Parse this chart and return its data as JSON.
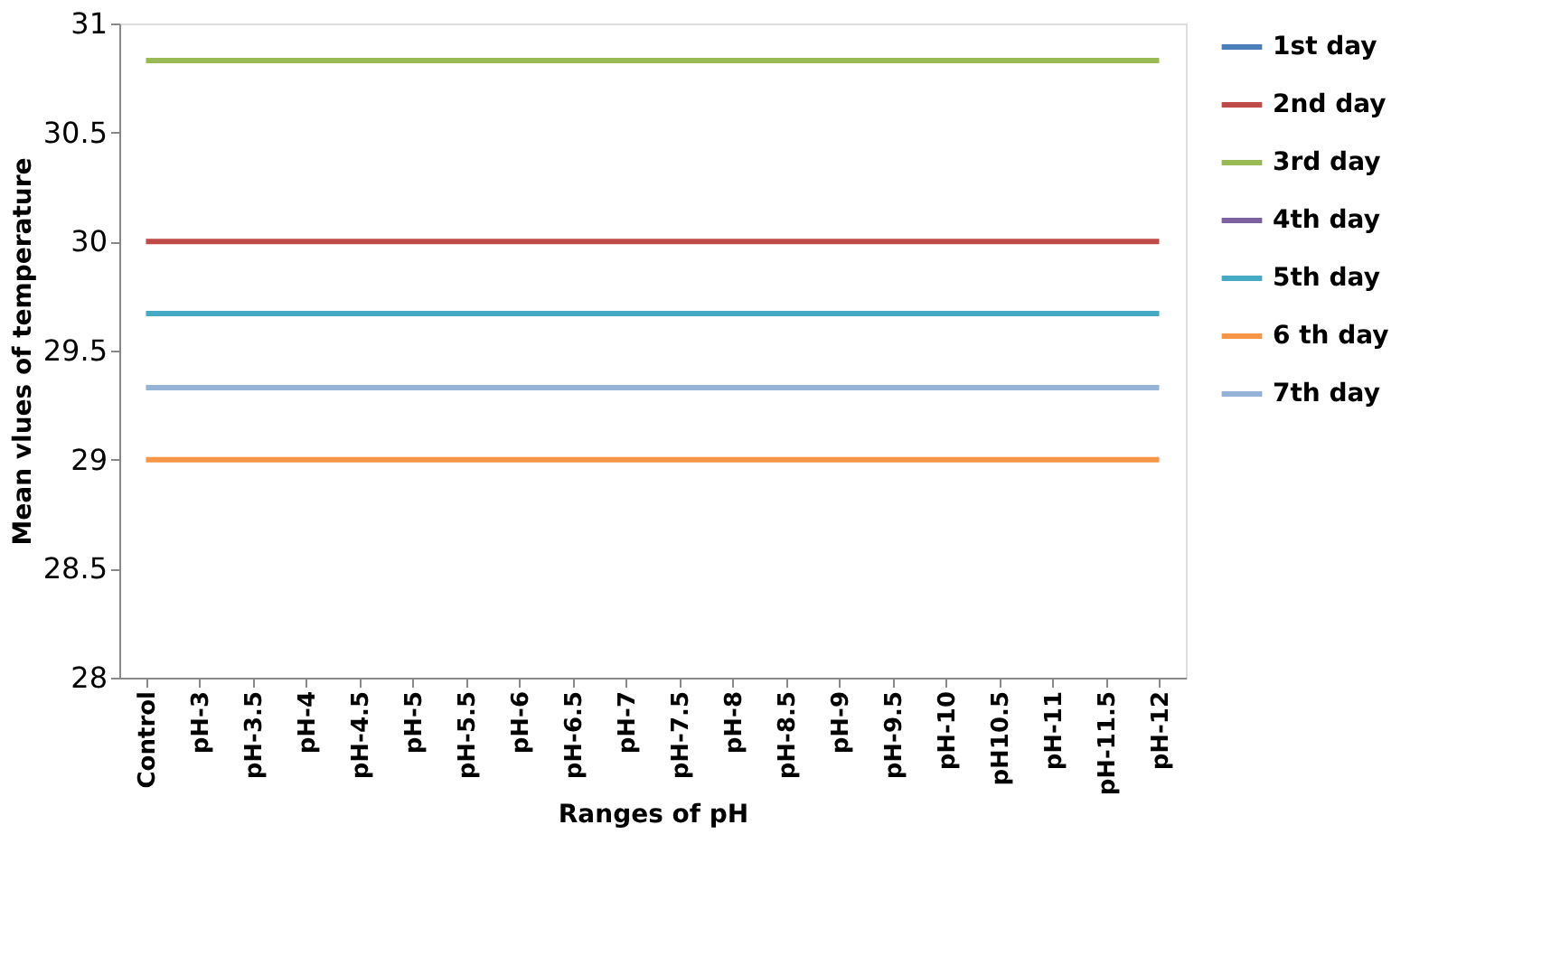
{
  "chart_data": {
    "type": "line",
    "xlabel": "Ranges of pH",
    "ylabel": "Mean vlues of temperature",
    "categories": [
      "Control",
      "pH-3",
      "pH-3.5",
      "pH-4",
      "pH-4.5",
      "pH-5",
      "pH-5.5",
      "pH-6",
      "pH-6.5",
      "pH-7",
      "pH-7.5",
      "pH-8",
      "pH-8.5",
      "pH-9",
      "pH-9.5",
      "pH-10",
      "pH10.5",
      "pH-11",
      "pH-11.5",
      "pH-12"
    ],
    "series": [
      {
        "name": "1st day",
        "color": "#4a7ebb",
        "values": [
          null,
          null,
          null,
          null,
          null,
          null,
          null,
          null,
          null,
          null,
          null,
          null,
          null,
          null,
          null,
          null,
          null,
          null,
          null,
          null
        ]
      },
      {
        "name": "2nd day",
        "color": "#be4b48",
        "values": [
          30,
          30,
          30,
          30,
          30,
          30,
          30,
          30,
          30,
          30,
          30,
          30,
          30,
          30,
          30,
          30,
          30,
          30,
          30,
          30
        ]
      },
      {
        "name": "3rd day",
        "color": "#98b954",
        "values": [
          30.83,
          30.83,
          30.83,
          30.83,
          30.83,
          30.83,
          30.83,
          30.83,
          30.83,
          30.83,
          30.83,
          30.83,
          30.83,
          30.83,
          30.83,
          30.83,
          30.83,
          30.83,
          30.83,
          30.83
        ]
      },
      {
        "name": "4th day",
        "color": "#7d60a0",
        "values": [
          null,
          null,
          null,
          null,
          null,
          null,
          null,
          null,
          null,
          null,
          null,
          null,
          null,
          null,
          null,
          null,
          null,
          null,
          null,
          null
        ]
      },
      {
        "name": "5th day",
        "color": "#46aac5",
        "values": [
          29.67,
          29.67,
          29.67,
          29.67,
          29.67,
          29.67,
          29.67,
          29.67,
          29.67,
          29.67,
          29.67,
          29.67,
          29.67,
          29.67,
          29.67,
          29.67,
          29.67,
          29.67,
          29.67,
          29.67
        ]
      },
      {
        "name": "6 th day",
        "color": "#f79646",
        "values": [
          29,
          29,
          29,
          29,
          29,
          29,
          29,
          29,
          29,
          29,
          29,
          29,
          29,
          29,
          29,
          29,
          29,
          29,
          29,
          29
        ]
      },
      {
        "name": "7th day",
        "color": "#95b3d7",
        "values": [
          29.33,
          29.33,
          29.33,
          29.33,
          29.33,
          29.33,
          29.33,
          29.33,
          29.33,
          29.33,
          29.33,
          29.33,
          29.33,
          29.33,
          29.33,
          29.33,
          29.33,
          29.33,
          29.33,
          29.33
        ]
      }
    ],
    "ylim": [
      28,
      31
    ],
    "yticks": [
      28,
      28.5,
      29,
      29.5,
      30,
      30.5,
      31
    ],
    "grid": false,
    "legend": "right",
    "line_style": "solid",
    "marker": "none"
  }
}
